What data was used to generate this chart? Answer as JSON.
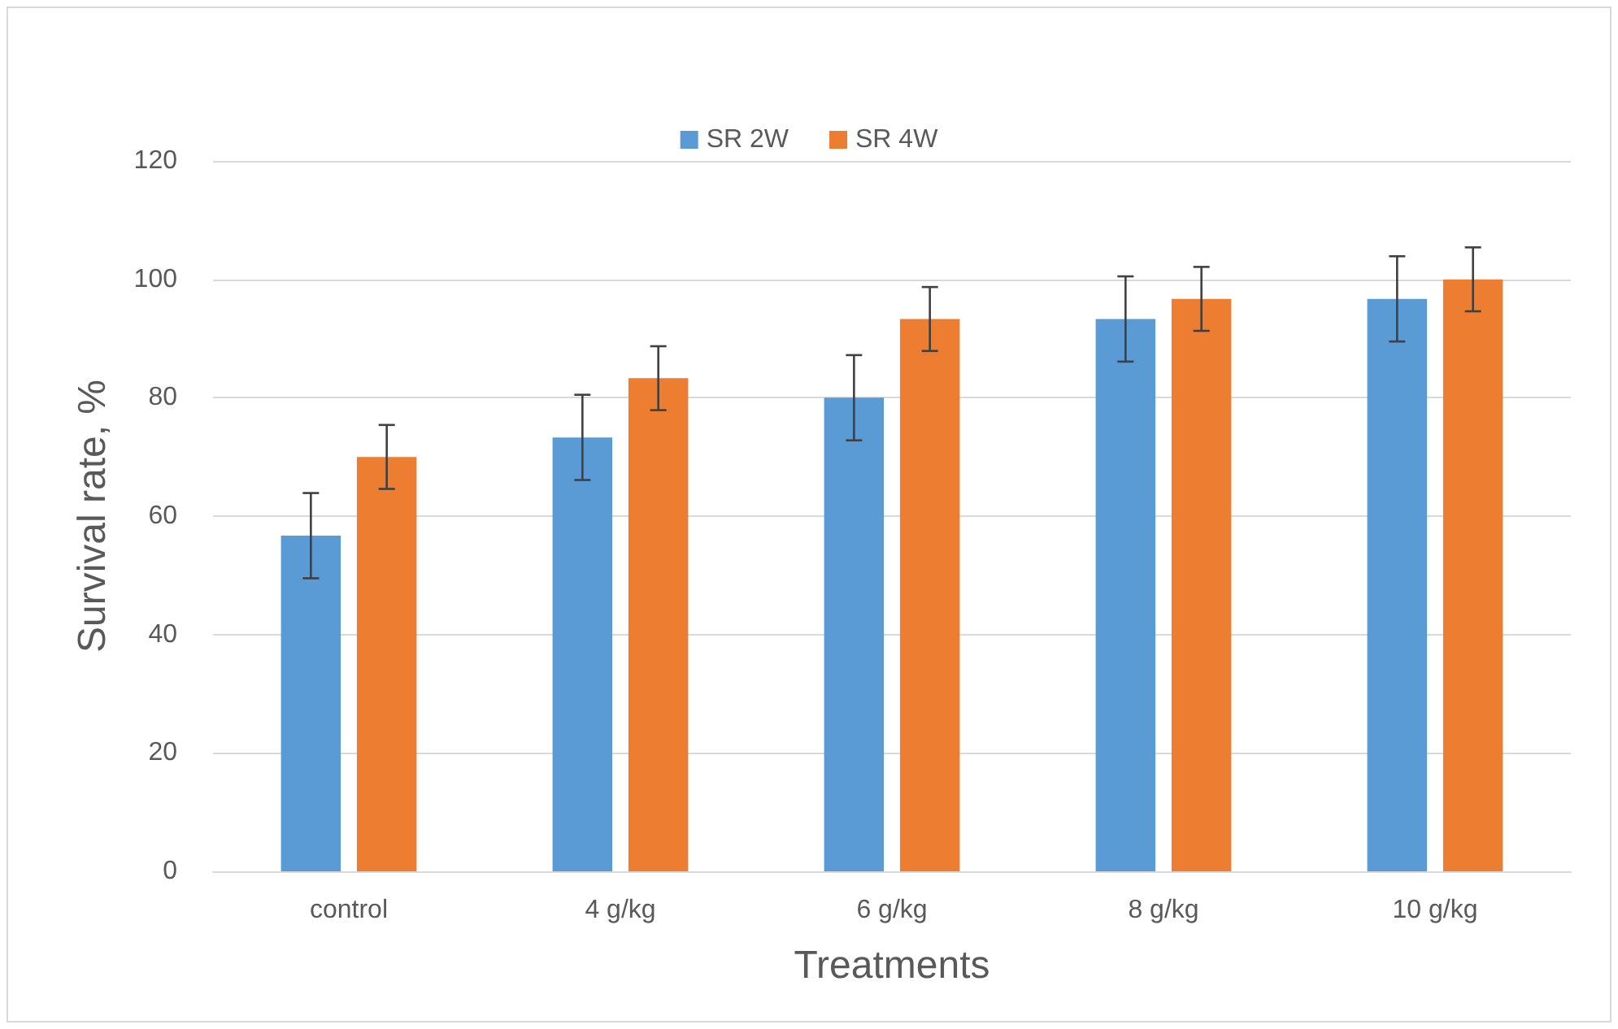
{
  "chart_data": {
    "type": "bar",
    "xlabel": "Treatments",
    "ylabel": "Survival rate, %",
    "categories": [
      "control",
      "4 g/kg",
      "6 g/kg",
      "8 g/kg",
      "10 g/kg"
    ],
    "series": [
      {
        "name": "SR 2W",
        "color": "#5b9bd5",
        "values": [
          56.7,
          73.3,
          80,
          93.3,
          96.7
        ],
        "errors": [
          7.2,
          7.2,
          7.2,
          7.2,
          7.2
        ]
      },
      {
        "name": "SR 4W",
        "color": "#ed7d31",
        "values": [
          70,
          83.3,
          93.3,
          96.7,
          100
        ],
        "errors": [
          5.4,
          5.4,
          5.4,
          5.4,
          5.4
        ]
      }
    ],
    "ylim": [
      0,
      120
    ],
    "yticks": [
      0,
      20,
      40,
      60,
      80,
      100,
      120
    ],
    "grid": "y",
    "legend": "top"
  }
}
